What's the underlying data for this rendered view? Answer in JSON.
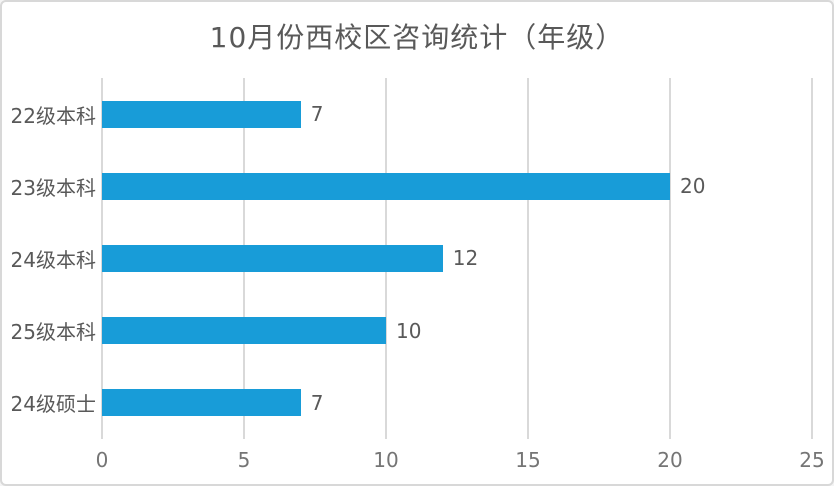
{
  "window": {
    "background": "#ffffff",
    "border_color": "#d8d8d8"
  },
  "chart_data": {
    "type": "bar",
    "orientation": "horizontal",
    "title": "10月份西校区咨询统计（年级）",
    "categories": [
      "22级本科",
      "23级本科",
      "24级本科",
      "25级本科",
      "24级硕士"
    ],
    "values": [
      7,
      20,
      12,
      10,
      7
    ],
    "x_ticks": [
      0,
      5,
      10,
      15,
      20,
      25
    ],
    "xlim": [
      0,
      25
    ],
    "xlabel": "",
    "ylabel": "",
    "legend": "none",
    "grid": "vertical-only",
    "value_labels_position": "outside-end",
    "bar_color": "#189cd8",
    "gridline_color": "#d9d9d9",
    "title_color": "#595959",
    "category_label_color": "#595959",
    "value_label_color": "#595959",
    "tick_label_color": "#757575"
  }
}
